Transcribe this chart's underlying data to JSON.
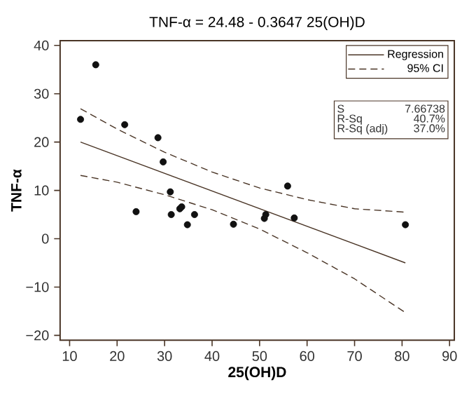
{
  "chart_data": {
    "type": "scatter",
    "title": "TNF-α = 24.48 - 0.3647 25(OH)D",
    "xlabel": "25(OH)D",
    "ylabel": "TNF-α",
    "xlim": [
      8,
      91
    ],
    "ylim": [
      -21,
      41
    ],
    "xticks": [
      10,
      20,
      30,
      40,
      50,
      60,
      70,
      80,
      90
    ],
    "yticks": [
      {
        "value": -20,
        "label": "−20"
      },
      {
        "value": -10,
        "label": "−10"
      },
      0,
      10,
      20,
      30,
      40
    ],
    "legend": "top right",
    "grid": false,
    "series": [
      {
        "marker": "circle",
        "color": "#111111",
        "x": [
          12.3,
          15.5,
          21.6,
          24.0,
          28.6,
          29.7,
          31.2,
          31.4,
          33.2,
          33.6,
          34.8,
          36.3,
          44.5,
          51.0,
          51.3,
          55.9,
          57.3,
          80.7
        ],
        "values": [
          24.7,
          36.0,
          23.6,
          5.6,
          20.9,
          15.9,
          9.7,
          5.0,
          6.2,
          6.6,
          2.9,
          5.0,
          3.0,
          4.2,
          5.0,
          10.9,
          4.3,
          2.9
        ]
      },
      {
        "type": "line",
        "name": "Regression",
        "line_style": "solid",
        "marker": "none",
        "color": "#4a3526",
        "x": [
          12.3,
          80.7
        ],
        "values": [
          20.0,
          -5.0
        ]
      },
      {
        "type": "line",
        "name": "95% CI",
        "line_style": "dashed",
        "marker": "none",
        "color": "#4a3526",
        "x": [
          12.3,
          20,
          30,
          40,
          50,
          60,
          70,
          80.7
        ],
        "values": [
          26.9,
          22.7,
          17.9,
          13.8,
          10.5,
          8.1,
          6.2,
          5.5
        ]
      },
      {
        "type": "line",
        "line_style": "dashed",
        "marker": "none",
        "color": "#4a3526",
        "x": [
          12.3,
          20,
          30,
          40,
          50,
          60,
          70,
          80.7
        ],
        "values": [
          13.1,
          11.7,
          9.1,
          6.0,
          2.0,
          -2.9,
          -8.3,
          -15.3
        ]
      }
    ],
    "annotations": [
      "S",
      "7.66738",
      "R-Sq",
      "40.7%",
      "R-Sq (adj)",
      "37.0%"
    ]
  }
}
